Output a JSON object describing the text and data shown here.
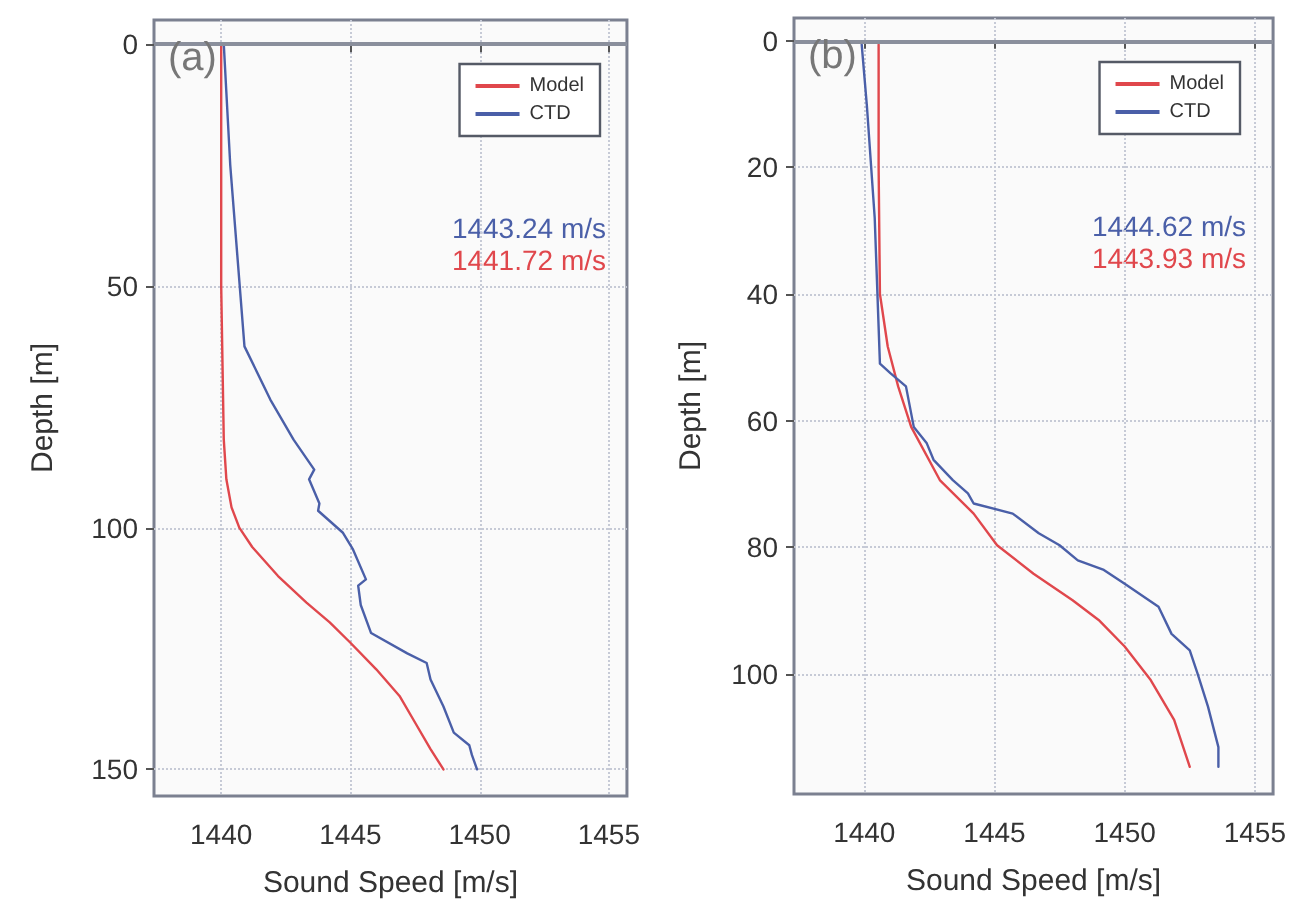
{
  "chart_data": [
    {
      "type": "line",
      "title": "(a)",
      "xlabel": "Sound Speed [m/s]",
      "ylabel": "Depth [m]",
      "xlim": [
        1437.4,
        1455.7
      ],
      "ylim": [
        155.5,
        -5
      ],
      "xticks": [
        1440,
        1445,
        1450,
        1455
      ],
      "yticks": [
        0,
        50,
        100,
        150
      ],
      "grid": true,
      "legend": "top right",
      "line_style": "solid",
      "marker": "none",
      "annotations": [
        "1443.24 m/s",
        "1441.72 m/s"
      ],
      "ref_lines": [
        {
          "axis": "y",
          "value": 0,
          "color": "#8a8f9c"
        }
      ],
      "series": [
        {
          "name": "Model",
          "color": "#e0474c",
          "x": [
            1440.0,
            1440.0,
            1440.1,
            1440.2,
            1440.4,
            1440.7,
            1441.2,
            1442.2,
            1443.3,
            1444.2,
            1445.0,
            1446.0,
            1446.9,
            1447.5,
            1448.1,
            1448.6
          ],
          "values": [
            0,
            50,
            81.8,
            90,
            95.8,
            100,
            104,
            110,
            115.5,
            119.6,
            123.8,
            129.3,
            134.8,
            140.3,
            145.8,
            150
          ]
        },
        {
          "name": "CTD",
          "color": "#4a5fa8",
          "x": [
            1440.1,
            1440.2,
            1440.35,
            1440.9,
            1441.9,
            1442.8,
            1443.6,
            1443.4,
            1443.8,
            1443.75,
            1444.7,
            1445.1,
            1445.6,
            1445.3,
            1445.4,
            1445.8,
            1447.2,
            1447.95,
            1448.1,
            1448.6,
            1449.0,
            1449.6,
            1449.7,
            1449.9
          ],
          "values": [
            0,
            10,
            25,
            62.5,
            73.5,
            81.8,
            88,
            90,
            95,
            96.5,
            101,
            104.5,
            110.7,
            112,
            116,
            121.8,
            126,
            128,
            131.4,
            137,
            142.4,
            145,
            147,
            150
          ]
        }
      ]
    },
    {
      "type": "line",
      "title": "(b)",
      "xlabel": "Sound Speed [m/s]",
      "ylabel": "Depth [m]",
      "xlim": [
        1437.3,
        1455.7
      ],
      "ylim": [
        119,
        -3.6
      ],
      "xticks": [
        1440,
        1445,
        1450,
        1455
      ],
      "yticks": [
        0,
        20,
        40,
        60,
        80,
        100
      ],
      "grid": true,
      "legend": "top right",
      "line_style": "solid",
      "marker": "none",
      "annotations": [
        "1444.62 m/s",
        "1443.93 m/s"
      ],
      "ref_lines": [
        {
          "axis": "y",
          "value": 0,
          "color": "#8a8f9c"
        }
      ],
      "series": [
        {
          "name": "Model",
          "color": "#e0474c",
          "x": [
            1440.55,
            1440.55,
            1440.6,
            1440.9,
            1441.3,
            1441.8,
            1442.9,
            1444.2,
            1445.1,
            1446.5,
            1448.0,
            1449.0,
            1450.0,
            1451.0,
            1451.9,
            1452.5
          ],
          "values": [
            0.6,
            19.8,
            40,
            48.3,
            54.6,
            61,
            69.4,
            74.7,
            79.7,
            84.2,
            88.4,
            91.5,
            95.7,
            101,
            107.3,
            114.7
          ]
        },
        {
          "name": "CTD",
          "color": "#4a5fa8",
          "x": [
            1439.9,
            1440.1,
            1440.4,
            1440.6,
            1441.0,
            1441.6,
            1441.9,
            1442.4,
            1442.66,
            1443.4,
            1443.98,
            1444.2,
            1445.7,
            1446.7,
            1447.5,
            1448.2,
            1449.2,
            1450.0,
            1451.3,
            1451.8,
            1452.5,
            1452.8,
            1453.2,
            1453.6,
            1453.6
          ],
          "values": [
            0.6,
            10.3,
            28,
            51,
            52.5,
            54.6,
            61,
            63.6,
            66.2,
            69.4,
            71.5,
            73.1,
            74.7,
            77.8,
            79.7,
            82.1,
            83.6,
            85.8,
            89.4,
            93.7,
            96.3,
            100,
            105.2,
            111.6,
            114.7
          ]
        }
      ]
    }
  ]
}
